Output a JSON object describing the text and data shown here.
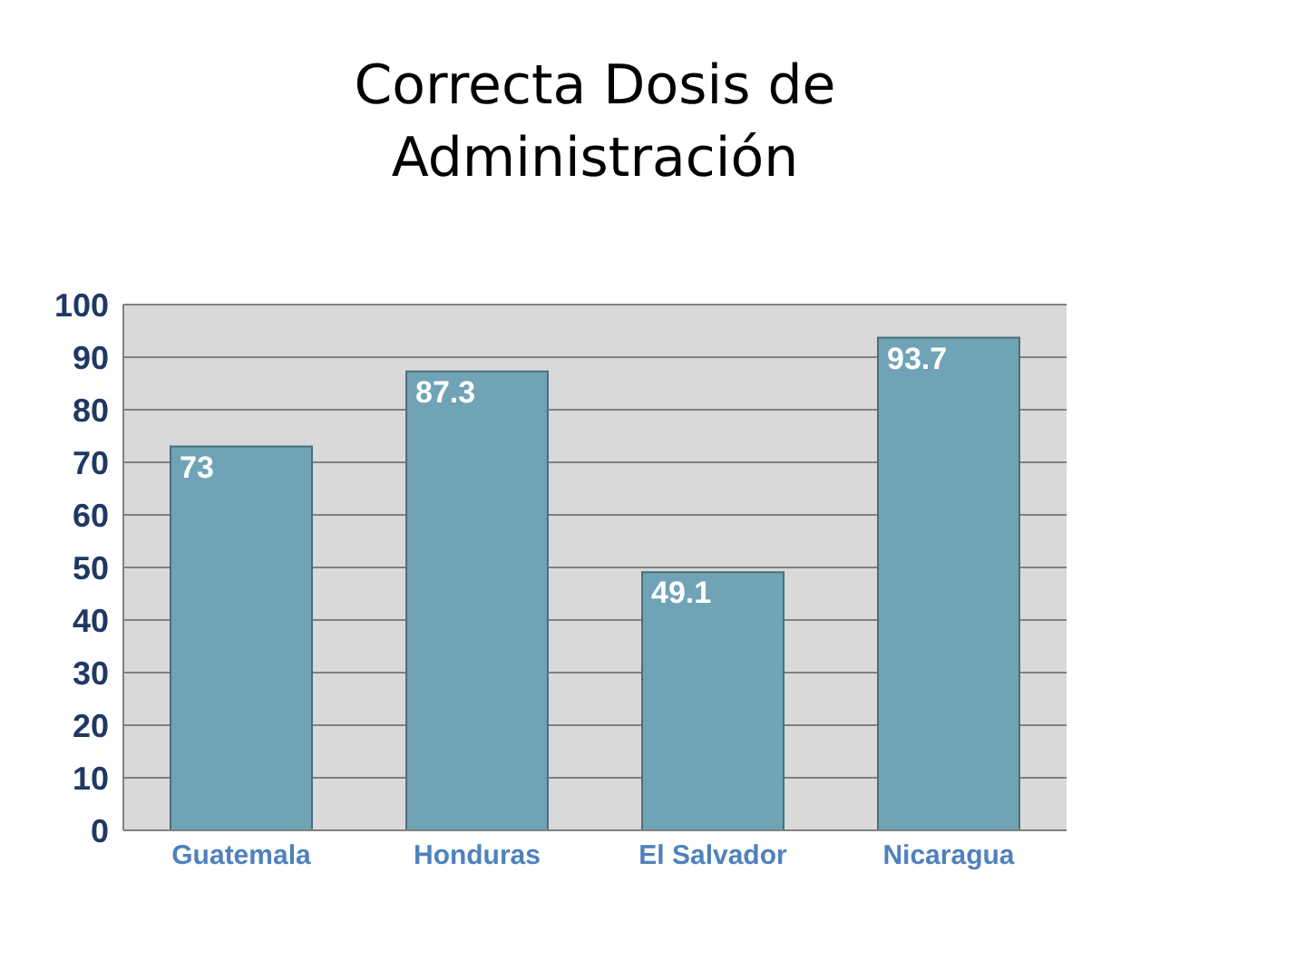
{
  "chart_data": {
    "type": "bar",
    "title": "Correcta Dosis de Administración",
    "categories": [
      "Guatemala",
      "Honduras",
      "El Salvador",
      "Nicaragua"
    ],
    "values": [
      73,
      87.3,
      49.1,
      93.7
    ],
    "color": "#6fa3b5",
    "ylim": [
      0,
      100
    ],
    "yticks": [
      0,
      10,
      20,
      30,
      40,
      50,
      60,
      70,
      80,
      90,
      100
    ],
    "grid": "y",
    "data_labels": true
  }
}
